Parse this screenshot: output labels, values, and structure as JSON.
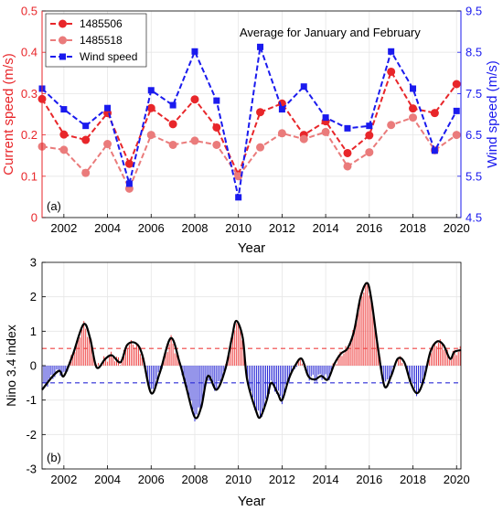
{
  "chart_data": [
    {
      "type": "line",
      "panel_label": "(a)",
      "annotation": "Average for January and February",
      "xlabel": "Year",
      "ylabel_left": "Current speed (m/s)",
      "ylabel_right": "Wind speed (m/s)",
      "xlim": [
        2001,
        2020.2
      ],
      "ylim_left": [
        0,
        0.5
      ],
      "ylim_right": [
        4.5,
        9.5
      ],
      "xticks": [
        "2002",
        "2004",
        "2006",
        "2008",
        "2010",
        "2012",
        "2014",
        "2016",
        "2018",
        "2020"
      ],
      "yticks_left": [
        "0",
        "0.1",
        "0.2",
        "0.3",
        "0.4",
        "0.5"
      ],
      "yticks_right": [
        "4.5",
        "5.5",
        "6.5",
        "7.5",
        "8.5",
        "9.5"
      ],
      "legend_position": "top-left",
      "grid": true,
      "colors": {
        "left_axis": "#e8262a",
        "right_axis": "#1a1aee"
      },
      "x": [
        2001,
        2002,
        2003,
        2004,
        2005,
        2006,
        2007,
        2008,
        2009,
        2010,
        2011,
        2012,
        2013,
        2014,
        2015,
        2016,
        2017,
        2018,
        2019,
        2020
      ],
      "series": [
        {
          "name": "1485506",
          "axis": "left",
          "color": "#e8262a",
          "marker": "circle",
          "values": [
            0.287,
            0.201,
            0.188,
            0.253,
            0.13,
            0.265,
            0.226,
            0.286,
            0.218,
            0.104,
            0.255,
            0.276,
            0.2,
            0.233,
            0.156,
            0.199,
            0.353,
            0.264,
            0.253,
            0.323
          ]
        },
        {
          "name": "1485518",
          "axis": "left",
          "color": "#ea7b7b",
          "marker": "circle",
          "values": [
            0.172,
            0.164,
            0.108,
            0.178,
            0.07,
            0.2,
            0.176,
            0.186,
            0.176,
            0.1,
            0.17,
            0.204,
            0.19,
            0.207,
            0.124,
            0.158,
            0.224,
            0.242,
            0.163,
            0.2
          ]
        },
        {
          "name": "Wind speed",
          "axis": "right",
          "color": "#1a1aee",
          "marker": "square",
          "values": [
            7.62,
            7.12,
            6.72,
            7.15,
            5.32,
            7.58,
            7.22,
            8.52,
            7.33,
            4.99,
            8.63,
            7.12,
            7.67,
            6.92,
            6.66,
            6.72,
            8.52,
            7.62,
            6.12,
            7.08
          ]
        }
      ]
    },
    {
      "type": "bar",
      "panel_label": "(b)",
      "xlabel": "Year",
      "ylabel": "Nino 3.4 index",
      "xlim": [
        2001,
        2020.2
      ],
      "ylim": [
        -3,
        3
      ],
      "xticks": [
        "2002",
        "2004",
        "2006",
        "2008",
        "2010",
        "2012",
        "2014",
        "2016",
        "2018",
        "2020"
      ],
      "yticks": [
        "-3",
        "-2",
        "-1",
        "0",
        "1",
        "2",
        "3"
      ],
      "thresholds": [
        0.5,
        -0.5
      ],
      "grid": true,
      "colors": {
        "positive": "#ef4444",
        "negative": "#2b2bd6",
        "smoothed": "#000000",
        "upper_threshold": "#ef4444",
        "lower_threshold": "#2b2bd6"
      },
      "x": [
        2001.0,
        2001.5,
        2001.8,
        2002.0,
        2002.4,
        2002.9,
        2003.2,
        2003.5,
        2003.9,
        2004.2,
        2004.6,
        2004.9,
        2005.3,
        2005.6,
        2006.0,
        2006.4,
        2006.9,
        2007.3,
        2007.6,
        2008.0,
        2008.3,
        2008.6,
        2009.0,
        2009.4,
        2009.7,
        2009.9,
        2010.2,
        2010.4,
        2010.8,
        2011.0,
        2011.3,
        2011.5,
        2011.8,
        2012.0,
        2012.3,
        2012.6,
        2012.9,
        2013.2,
        2013.5,
        2013.8,
        2014.1,
        2014.4,
        2014.7,
        2015.0,
        2015.3,
        2015.6,
        2015.9,
        2016.1,
        2016.4,
        2016.7,
        2017.0,
        2017.3,
        2017.6,
        2017.9,
        2018.2,
        2018.5,
        2018.8,
        2019.1,
        2019.4,
        2019.7,
        2019.9,
        2020.2
      ],
      "values": [
        -0.7,
        -0.3,
        -0.15,
        -0.3,
        0.3,
        1.2,
        0.8,
        -0.05,
        0.2,
        0.3,
        0.1,
        0.6,
        0.65,
        0.3,
        -0.8,
        -0.2,
        0.8,
        0.1,
        -0.6,
        -1.5,
        -1.2,
        -0.3,
        -0.7,
        -0.1,
        0.8,
        1.3,
        0.8,
        -0.4,
        -1.3,
        -1.5,
        -1.0,
        -0.5,
        -0.8,
        -1.0,
        -0.4,
        0.0,
        0.2,
        -0.3,
        -0.4,
        -0.3,
        -0.4,
        0.05,
        0.35,
        0.5,
        1.0,
        2.0,
        2.4,
        1.9,
        0.5,
        -0.6,
        -0.3,
        0.2,
        0.1,
        -0.5,
        -0.8,
        -0.4,
        0.4,
        0.7,
        0.6,
        0.2,
        0.4,
        0.45
      ]
    }
  ]
}
